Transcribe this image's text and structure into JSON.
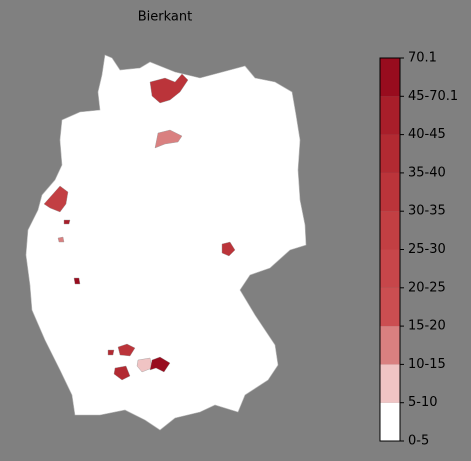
{
  "title": "Bierkant",
  "colorbar": {
    "ticks": [
      "0-5",
      "5-10",
      "10-15",
      "15-20",
      "20-25",
      "25-30",
      "30-35",
      "35-40",
      "40-45",
      "45-70.1",
      "70.1"
    ],
    "colors": [
      "#ffffff",
      "#f0c4c4",
      "#d98080",
      "#cb4e51",
      "#c7464a",
      "#c23f43",
      "#bb343a",
      "#b22a32",
      "#a81e2a",
      "#980c1e"
    ]
  },
  "regions": [
    {
      "bin": 6
    },
    {
      "bin": 2
    },
    {
      "bin": 5
    },
    {
      "bin": 8
    },
    {
      "bin": 2
    },
    {
      "bin": 9
    },
    {
      "bin": 6
    },
    {
      "bin": 6
    },
    {
      "bin": 7
    },
    {
      "bin": 1
    },
    {
      "bin": 9
    },
    {
      "bin": 7
    }
  ]
}
